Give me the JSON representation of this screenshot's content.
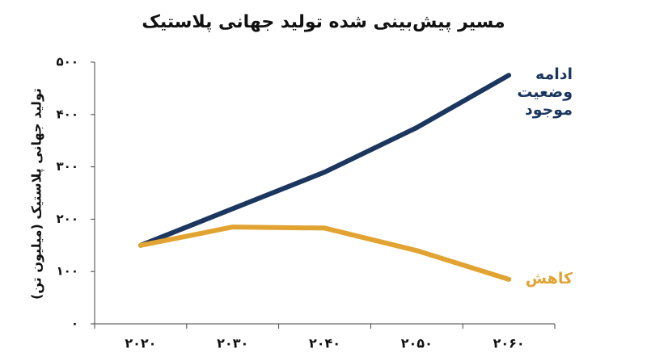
{
  "chart_data": {
    "type": "line",
    "title": "مسیر پیش‌بینی شده تولید جهانی پلاستیک",
    "y_label": "تولید جهانی پلاستیک (میلیون تن)",
    "categories": [
      "۲۰۲۰",
      "۲۰۳۰",
      "۲۰۴۰",
      "۲۰۵۰",
      "۲۰۶۰"
    ],
    "series": [
      {
        "name": "ادامه وضعیت موجود",
        "color": "#1b365f",
        "values": [
          150,
          220,
          290,
          375,
          475
        ]
      },
      {
        "name": "کاهش",
        "color": "#e1a331",
        "values": [
          150,
          185,
          183,
          140,
          85
        ]
      }
    ],
    "ylim": [
      0,
      500
    ],
    "yticks": [
      {
        "value": 0,
        "label": "۰"
      },
      {
        "value": 100,
        "label": "۱۰۰"
      },
      {
        "value": 200,
        "label": "۲۰۰"
      },
      {
        "value": 300,
        "label": "۳۰۰"
      },
      {
        "value": 400,
        "label": "۴۰۰"
      },
      {
        "value": 500,
        "label": "۵۰۰"
      }
    ],
    "grid": false
  }
}
